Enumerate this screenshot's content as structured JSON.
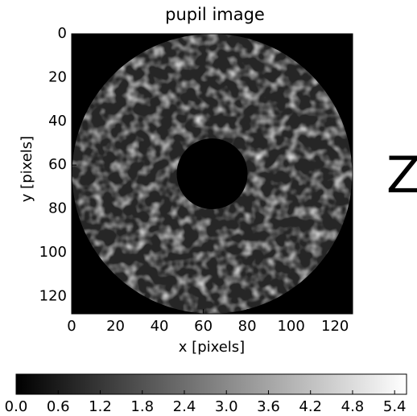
{
  "chart_data": {
    "type": "image",
    "title": "pupil image",
    "xlabel": "x [pixels]",
    "ylabel": "y [pixels]",
    "annotation": "Z",
    "xlim": [
      0,
      128
    ],
    "xticks": [
      0,
      20,
      40,
      60,
      80,
      100,
      120
    ],
    "ylim": [
      128,
      0
    ],
    "yticks": [
      0,
      20,
      40,
      60,
      80,
      100,
      120
    ],
    "colorbar": {
      "lim": [
        0,
        5.57
      ],
      "colors": [
        "#000000",
        "#ffffff"
      ],
      "ticks": [
        {
          "value": 0,
          "label": "0.0"
        },
        0.6,
        1.2,
        1.8,
        2.4,
        {
          "value": 3,
          "label": "3.0"
        },
        3.6,
        4.2,
        4.8,
        5.4
      ]
    }
  }
}
